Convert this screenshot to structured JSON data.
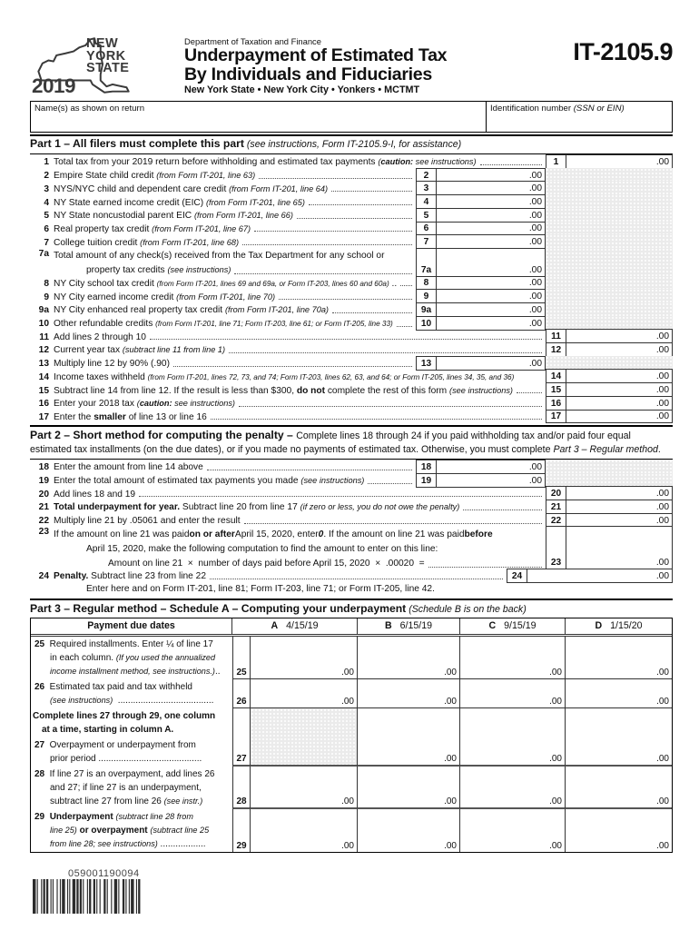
{
  "form": {
    "agency": "Department of Taxation and Finance",
    "title_line1": "Underpayment of Estimated Tax",
    "title_line2": "By Individuals and Fiduciaries",
    "subtitle": "New York State • New York City • Yonkers • MCTMT",
    "form_number": "IT-2105.9",
    "logo_text": "NEW\nYORK\nSTATE",
    "logo_year": "2019"
  },
  "name_box": {
    "name_label": "Name(s) as shown on return",
    "id_label_html": "Identification number <i>(SSN or EIN)</i>"
  },
  "part1": {
    "heading_html": "<b class='bg'>Part 1 – All filers must complete this part</b> <i>(see instructions, Form IT-2105.9-I, for assistance)</i>",
    "lines": [
      {
        "num": "1",
        "label_html": "Total tax from your 2019 return before withholding and estimated tax payments <i>(<b>caution:</b> see instructions)</i>",
        "value": ".00"
      },
      {
        "num": "2",
        "label_html": "Empire State child credit <i>(from Form IT-201, line 63)</i>",
        "value": ".00"
      },
      {
        "num": "3",
        "label_html": "NYS/NYC child and dependent care credit <i>(from Form IT-201, line 64)</i>",
        "value": ".00"
      },
      {
        "num": "4",
        "label_html": "NY State earned income credit (EIC) <i>(from Form IT-201, line 65)</i>",
        "value": ".00"
      },
      {
        "num": "5",
        "label_html": "NY State noncustodial parent EIC <i>(from Form IT-201, line 66)</i>",
        "value": ".00"
      },
      {
        "num": "6",
        "label_html": "Real property tax credit <i>(from Form IT-201, line 67)</i>",
        "value": ".00"
      },
      {
        "num": "7",
        "label_html": "College tuition credit <i>(from Form IT-201, line 68)</i>",
        "value": ".00"
      },
      {
        "num": "7a",
        "label1": "Total amount of any check(s) received from the Tax Department for any school or",
        "label2_html": "property tax credits <i>(see instructions)</i>",
        "value": ".00"
      },
      {
        "num": "8",
        "label_html": "NY City school tax credit <i class='sm'>(from Form IT-201, lines 69 and 69a, or Form IT-203, lines 60 and 60a)</i> ..",
        "value": ".00"
      },
      {
        "num": "9",
        "label_html": "NY City earned income credit <i>(from Form IT-201, line 70)</i>",
        "value": ".00"
      },
      {
        "num": "9a",
        "label_html": "NY City enhanced real property tax credit <i>(from Form IT-201, line 70a)</i>",
        "value": ".00"
      },
      {
        "num": "10",
        "label_html": "Other refundable credits <i class='sm'>(from Form IT-201, line 71; Form IT-203, line 61; or Form IT-205, line 33)</i>",
        "value": ".00"
      },
      {
        "num": "11",
        "label_html": "Add lines 2 through 10",
        "value": ".00"
      },
      {
        "num": "12",
        "label_html": "Current year tax <i>(subtract line 11 from line 1)</i>",
        "value": ".00"
      },
      {
        "num": "13",
        "label_html": "Multiply line 12 by 90% (.90)",
        "value": ".00"
      },
      {
        "num": "14",
        "label_html": "Income taxes withheld <i class='sm'>(from Form IT-201, lines 72, 73, and 74; Form IT-203, lines 62, 63, and 64; or Form IT-205, lines 34, 35, and 36)</i>",
        "value": ".00"
      },
      {
        "num": "15",
        "label_html": "Subtract line 14 from line 12. If the result is less than $300, <b>do not</b> complete the rest of this form <i>(see instructions)</i>",
        "value": ".00"
      },
      {
        "num": "16",
        "label_html": "Enter your 2018 tax <i>(<b>caution:</b> see instructions)</i>",
        "value": ".00"
      },
      {
        "num": "17",
        "label_html": "Enter the <b>smaller</b> of line 13 or line 16",
        "value": ".00"
      }
    ]
  },
  "part2": {
    "heading_html": "<b class='bg'>Part 2 – Short method for computing the penalty – </b>Complete lines 18 through 24 if you paid withholding tax and/or paid four equal estimated tax installments (on the due dates), or if you made no payments of estimated tax. Otherwise, you must complete <i style='font-size:10.6px'>Part 3 – Regular method</i>.",
    "lines": [
      {
        "num": "18",
        "label_html": "Enter the amount from line 14 above",
        "value": ".00"
      },
      {
        "num": "19",
        "label_html": "Enter the total amount of estimated tax payments you made <i>(see instructions)</i>",
        "value": ".00"
      },
      {
        "num": "20",
        "label_html": "Add lines 18 and 19",
        "value": ".00"
      },
      {
        "num": "21",
        "label_html": "<b>Total underpayment for year.</b> Subtract line 20 from line 17 <i>(if zero or less, you do not owe the penalty)</i>",
        "value": ".00"
      },
      {
        "num": "22",
        "label_html": "Multiply line 21 by .05061 and enter the result",
        "value": ".00"
      }
    ],
    "line23": {
      "num": "23",
      "t1_html": "If the amount on line 21 was paid <b>on or after</b> April 15, 2020, enter <b><i style='font-size:10.2px'>0</i></b>. If the amount on line 21 was paid <b>before</b>",
      "t2": "April 15, 2020, make the following computation to find the amount to enter on this line:",
      "t3_html": "Amount on line 21&nbsp; ×&nbsp; number of days paid before April 15, 2020&nbsp; ×&nbsp; .00020&nbsp; =",
      "value": ".00"
    },
    "line24": {
      "num": "24",
      "label_html": "<b>Penalty.</b> Subtract line 23 from line 22",
      "value": ".00",
      "after": "Enter here and on Form IT-201, line 81; Form IT-203, line 71; or Form IT-205, line 42."
    }
  },
  "part3": {
    "heading_html": "<b class='bg'>Part 3 – Regular method – Schedule A – Computing your underpayment</b> <i>(Schedule B is on the back)</i>",
    "header_label": "Payment due dates",
    "cols": [
      {
        "letter": "A",
        "date": "4/15/19"
      },
      {
        "letter": "B",
        "date": "6/15/19"
      },
      {
        "letter": "C",
        "date": "9/15/19"
      },
      {
        "letter": "D",
        "date": "1/15/20"
      }
    ],
    "rows": {
      "r25": {
        "num": "25",
        "label_html": "<b>25</b>&nbsp; Required installments. Enter ¼ of line 17<br><span class='ind1'>in each column. <i>(If you used the annualized</i></span><br><span class='ind1'><i>income installment method, see instructions.)</i>..</span>",
        "a": ".00",
        "b": ".00",
        "c": ".00",
        "d": ".00"
      },
      "r26": {
        "num": "26",
        "label_html": "<b>26</b>&nbsp; Estimated tax paid and tax withheld<br><span class='ind1'><i>(see instructions)</i>&nbsp; ......................................</span>",
        "a": ".00",
        "b": ".00",
        "c": ".00",
        "d": ".00"
      },
      "complete": {
        "label_html": "<span class='cplx'>Complete lines 27 through 29, one column<br><span class='indh'>at a time, starting in column A.</span></span>"
      },
      "r27": {
        "num": "27",
        "label_html": "<b>27</b>&nbsp; Overpayment or underpayment from<br><span class='ind1'>prior period .........................................</span>",
        "b": ".00",
        "c": ".00",
        "d": ".00"
      },
      "r28": {
        "num": "28",
        "label_html": "<b>28</b>&nbsp; If line 27 is an overpayment, add lines 26<br><span class='ind1'>and 27; if line 27 is an underpayment,</span><br><span class='ind1'>subtract line 27 from line 26 <i>(see instr.)</i></span>",
        "a": ".00",
        "b": ".00",
        "c": ".00",
        "d": ".00"
      },
      "r29": {
        "num": "29",
        "label_html": "<b>29</b>&nbsp; <b>Underpayment</b> <i>(subtract line 28 from</i><br><span class='ind1'><i>line 25)</i> <b>or overpayment</b> <i>(subtract line 25</i></span><br><span class='ind1'><i>from line 28; see instructions)</i> ..................</span>",
        "a": ".00",
        "b": ".00",
        "c": ".00",
        "d": ".00"
      }
    }
  },
  "footer": {
    "barcode_number": "059001190094"
  }
}
